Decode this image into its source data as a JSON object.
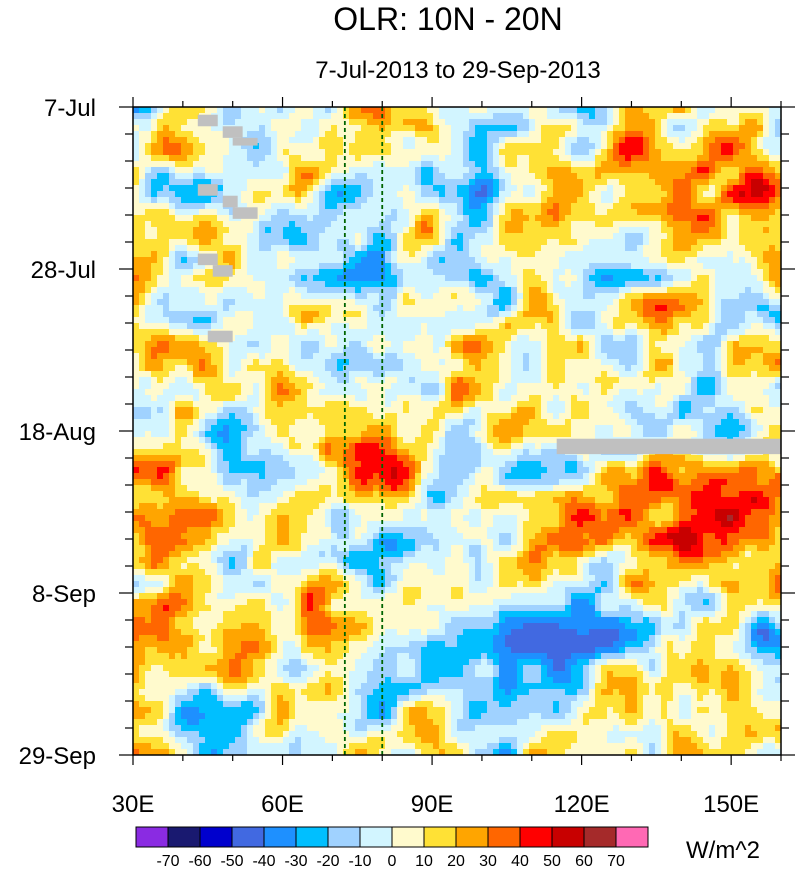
{
  "chart_data": {
    "type": "heatmap",
    "title": "OLR: 10N - 20N",
    "subtitle": "7-Jul-2013 to 29-Sep-2013",
    "x_ticks": [
      "30E",
      "60E",
      "90E",
      "120E",
      "150E"
    ],
    "x_tick_values": [
      30,
      60,
      90,
      120,
      150
    ],
    "xlim": [
      30,
      160
    ],
    "y_ticks": [
      "7-Jul",
      "28-Jul",
      "18-Aug",
      "8-Sep",
      "29-Sep"
    ],
    "y_tick_days": [
      0,
      21,
      42,
      63,
      84
    ],
    "ylim_days": [
      0,
      84
    ],
    "reference_lines_lon": [
      72.5,
      80
    ],
    "colorbar": {
      "levels": [
        -70,
        -60,
        -50,
        -40,
        -30,
        -20,
        -10,
        0,
        10,
        20,
        30,
        40,
        50,
        60,
        70
      ],
      "labels": [
        "-70",
        "-60",
        "-50",
        "-40",
        "-30",
        "-20",
        "-10",
        "0",
        "10",
        "20",
        "30",
        "40",
        "50",
        "60",
        "70"
      ],
      "colors": [
        "#8a2be2",
        "#191970",
        "#0000cd",
        "#4169e1",
        "#1e90ff",
        "#00bfff",
        "#a0d2ff",
        "#d2f5ff",
        "#fffacd",
        "#ffe135",
        "#ffa500",
        "#ff6600",
        "#ff0000",
        "#c80000",
        "#a52a2a",
        "#ff69b4"
      ],
      "units": "W/m^2"
    },
    "missing_color": "#c0c0c0",
    "missing_regions": [
      {
        "lon": [
          43,
          47
        ],
        "day": [
          1,
          2.5
        ]
      },
      {
        "lon": [
          48,
          52
        ],
        "day": [
          2.5,
          4
        ]
      },
      {
        "lon": [
          50,
          55
        ],
        "day": [
          4,
          5
        ]
      },
      {
        "lon": [
          43,
          47
        ],
        "day": [
          10,
          11.5
        ]
      },
      {
        "lon": [
          48,
          51
        ],
        "day": [
          11.5,
          13
        ]
      },
      {
        "lon": [
          50,
          55
        ],
        "day": [
          13,
          14.5
        ]
      },
      {
        "lon": [
          43,
          47
        ],
        "day": [
          19,
          20.5
        ]
      },
      {
        "lon": [
          46,
          50
        ],
        "day": [
          20.5,
          22
        ]
      },
      {
        "lon": [
          45,
          50
        ],
        "day": [
          29,
          30.5
        ]
      },
      {
        "lon": [
          115,
          160
        ],
        "day": [
          43,
          45
        ]
      }
    ]
  }
}
